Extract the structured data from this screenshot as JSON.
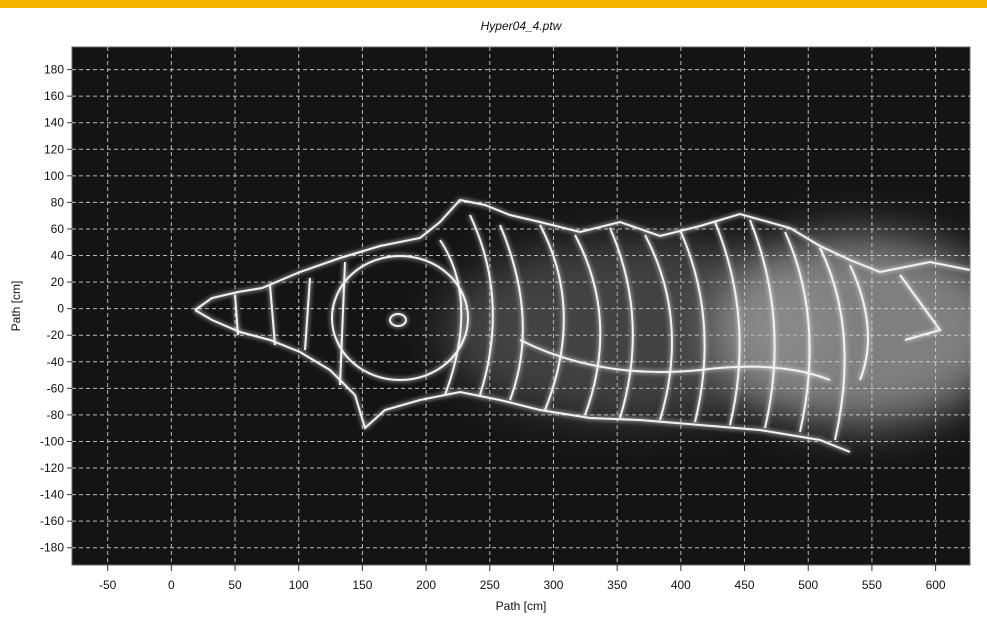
{
  "chart_data": {
    "type": "image",
    "title": "Hyper04_4.ptw",
    "x_label": "Path [cm]",
    "y_label": "Path [cm]",
    "xlim": [
      -78,
      627
    ],
    "ylim": [
      -193,
      197
    ],
    "xticks": [
      -50,
      0,
      50,
      100,
      150,
      200,
      250,
      300,
      350,
      400,
      450,
      500,
      550,
      600
    ],
    "yticks": [
      -180,
      -160,
      -140,
      -120,
      -100,
      -80,
      -60,
      -40,
      -20,
      0,
      20,
      40,
      60,
      80,
      100,
      120,
      140,
      160,
      180
    ],
    "grid": true
  }
}
